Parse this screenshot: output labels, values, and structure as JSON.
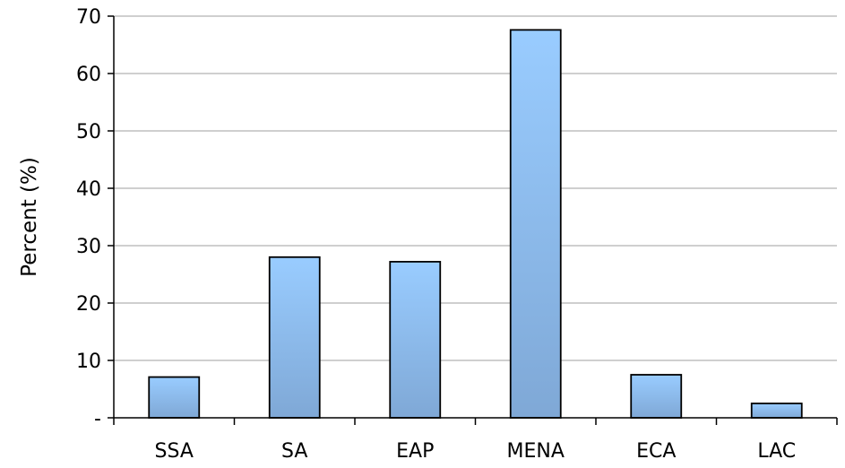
{
  "chart_data": {
    "type": "bar",
    "title": "",
    "xlabel": "",
    "ylabel": "Percent (%)",
    "categories": [
      "SSA",
      "SA",
      "EAP",
      "MENA",
      "ECA",
      "LAC"
    ],
    "values": [
      7.1,
      28.0,
      27.2,
      67.6,
      7.5,
      2.5
    ],
    "ylim": [
      0,
      70
    ],
    "yticks": [
      0,
      10,
      20,
      30,
      40,
      50,
      60,
      70
    ],
    "ytick_labels": [
      "-",
      "10",
      "20",
      "30",
      "40",
      "50",
      "60",
      "70"
    ],
    "grid": true,
    "legend": "none",
    "colors": {
      "bar_top": "#99ccff",
      "bar_bottom": "#7fa8d6",
      "bar_border": "#000000",
      "grid": "#bfbfbf",
      "axis": "#000000"
    }
  }
}
